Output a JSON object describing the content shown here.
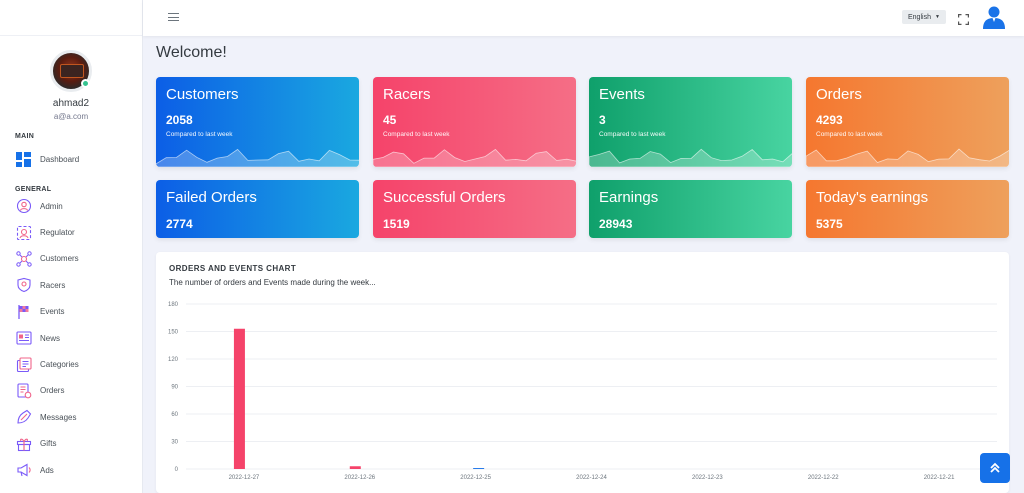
{
  "profile": {
    "name": "ahmad2",
    "email": "a@a.com"
  },
  "menu": {
    "main_title": "MAIN",
    "general_title": "GENERAL",
    "dashboard": "Dashboard",
    "items": [
      {
        "label": "Admin",
        "icon": "admin-icon"
      },
      {
        "label": "Regulator",
        "icon": "regulator-icon"
      },
      {
        "label": "Customers",
        "icon": "customers-icon"
      },
      {
        "label": "Racers",
        "icon": "racers-icon"
      },
      {
        "label": "Events",
        "icon": "events-icon"
      },
      {
        "label": "News",
        "icon": "news-icon"
      },
      {
        "label": "Categories",
        "icon": "categories-icon"
      },
      {
        "label": "Orders",
        "icon": "orders-icon"
      },
      {
        "label": "Messages",
        "icon": "messages-icon"
      },
      {
        "label": "Gifts",
        "icon": "gifts-icon"
      },
      {
        "label": "Ads",
        "icon": "ads-icon"
      }
    ]
  },
  "header": {
    "language": "English"
  },
  "welcome": "Welcome!",
  "stats": [
    {
      "title": "Customers",
      "value": "2058",
      "sub": "Compared to last week",
      "color": "blue"
    },
    {
      "title": "Racers",
      "value": "45",
      "sub": "Compared to last week",
      "color": "red"
    },
    {
      "title": "Events",
      "value": "3",
      "sub": "Compared to last week",
      "color": "green"
    },
    {
      "title": "Orders",
      "value": "4293",
      "sub": "Compared to last week",
      "color": "orange"
    }
  ],
  "stats2": [
    {
      "title": "Failed Orders",
      "value": "2774",
      "color": "blue"
    },
    {
      "title": "Successful Orders",
      "value": "1519",
      "color": "red"
    },
    {
      "title": "Earnings",
      "value": "28943",
      "color": "green"
    },
    {
      "title": "Today's earnings",
      "value": "5375",
      "color": "orange"
    }
  ],
  "colors": {
    "accent": "#1671e8",
    "orders_bar": "#f5436a",
    "events_bar": "#1671e8"
  },
  "chart_data": {
    "type": "bar",
    "title": "ORDERS AND EVENTS CHART",
    "subtitle": "The number of orders and Events made during the week...",
    "categories": [
      "2022-12-27",
      "2022-12-26",
      "2022-12-25",
      "2022-12-24",
      "2022-12-23",
      "2022-12-22",
      "2022-12-21"
    ],
    "series": [
      {
        "values": [
          153,
          3,
          0,
          0,
          0,
          0,
          0
        ],
        "color": "#f5436a"
      },
      {
        "values": [
          0,
          0,
          1,
          0,
          0,
          0,
          0
        ],
        "color": "#1671e8"
      }
    ],
    "ylim": [
      0,
      180
    ],
    "yticks": [
      0,
      30,
      60,
      90,
      120,
      150,
      180
    ],
    "grid": true
  }
}
